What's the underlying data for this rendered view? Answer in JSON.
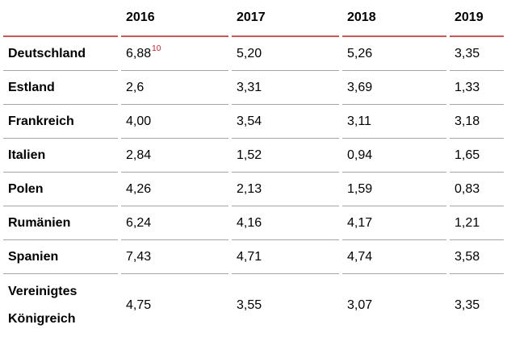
{
  "chart_data": {
    "type": "table",
    "columns": [
      "2016",
      "2017",
      "2018",
      "2019"
    ],
    "rows": [
      {
        "label": "Deutschland",
        "values": [
          "6,88",
          "5,20",
          "5,26",
          "3,35"
        ],
        "footnote": "10"
      },
      {
        "label": "Estland",
        "values": [
          "2,6",
          "3,31",
          "3,69",
          "1,33"
        ]
      },
      {
        "label": "Frankreich",
        "values": [
          "4,00",
          "3,54",
          "3,11",
          "3,18"
        ]
      },
      {
        "label": "Italien",
        "values": [
          "2,84",
          "1,52",
          "0,94",
          "1,65"
        ]
      },
      {
        "label": "Polen",
        "values": [
          "4,26",
          "2,13",
          "1,59",
          "0,83"
        ]
      },
      {
        "label": "Rumänien",
        "values": [
          "6,24",
          "4,16",
          "4,17",
          "1,21"
        ]
      },
      {
        "label": "Spanien",
        "values": [
          "7,43",
          "4,71",
          "4,74",
          "3,58"
        ]
      },
      {
        "label": "Vereinigtes Königreich",
        "values": [
          "4,75",
          "3,55",
          "3,07",
          "3,35"
        ]
      }
    ],
    "colors": {
      "header_rule": "#c9585c",
      "row_rule": "#a5a5a5",
      "footnote_marker": "#c41e28",
      "text": "#000000",
      "background": "#ffffff"
    },
    "layout": {
      "grid": "horizontal-rules-only",
      "decimal_separator": "comma"
    }
  }
}
